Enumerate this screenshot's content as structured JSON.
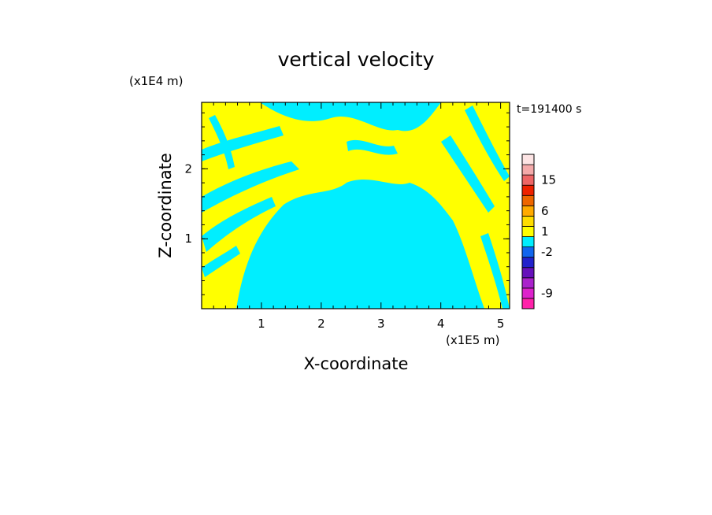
{
  "chart_data": {
    "type": "heatmap",
    "title": "vertical velocity",
    "xlabel": "X-coordinate",
    "ylabel": "Z-coordinate",
    "x_unit": "(x1E5 m)",
    "y_unit": "(x1E4 m)",
    "time_label": "t=191400 s",
    "xlim": [
      0,
      5.15
    ],
    "ylim": [
      0,
      2.95
    ],
    "x_ticks": [
      1,
      2,
      3,
      4,
      5
    ],
    "y_ticks": [
      1,
      2
    ],
    "colors": {
      "positive": "#ffff00",
      "negative": "#00eeff",
      "frame": "#000000"
    },
    "colorbar": {
      "levels": [
        {
          "color": "#ff22aa"
        },
        {
          "color": "#dd22cc"
        },
        {
          "color": "#aa22cc"
        },
        {
          "color": "#6611bb"
        },
        {
          "color": "#2222cc"
        },
        {
          "color": "#1166ee"
        },
        {
          "color": "#00eeff"
        },
        {
          "color": "#ffff00"
        },
        {
          "color": "#ffdd00"
        },
        {
          "color": "#ffaa00"
        },
        {
          "color": "#ee6600"
        },
        {
          "color": "#ee2200"
        },
        {
          "color": "#ee6666"
        },
        {
          "color": "#f4aaaa"
        },
        {
          "color": "#fde4e4"
        }
      ],
      "labels": [
        "15",
        "6",
        "1",
        "-2",
        "-9"
      ]
    }
  }
}
